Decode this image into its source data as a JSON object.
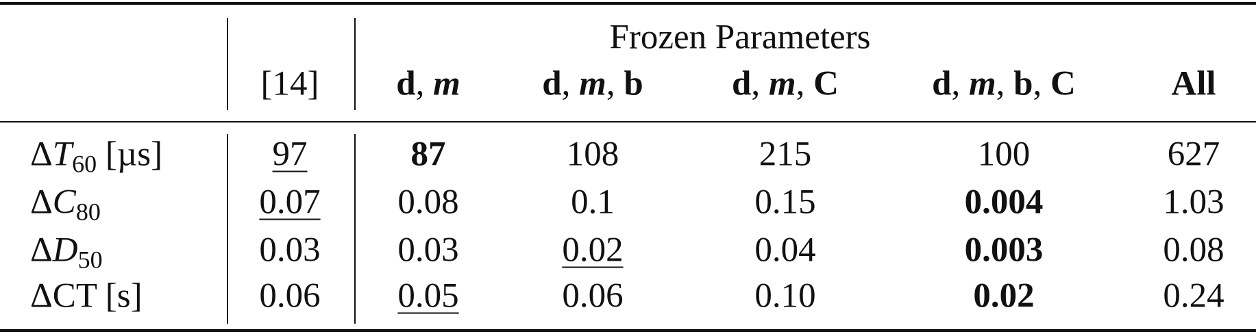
{
  "table": {
    "group_header": "Frozen Parameters",
    "columns": [
      [
        {
          "t": "[14]"
        }
      ],
      [
        {
          "t": "d",
          "bold": true
        },
        {
          "t": ", "
        },
        {
          "t": "m",
          "bold": true,
          "italic": true
        }
      ],
      [
        {
          "t": "d",
          "bold": true
        },
        {
          "t": ", "
        },
        {
          "t": "m",
          "bold": true,
          "italic": true
        },
        {
          "t": ", "
        },
        {
          "t": "b",
          "bold": true
        }
      ],
      [
        {
          "t": "d",
          "bold": true
        },
        {
          "t": ", "
        },
        {
          "t": "m",
          "bold": true,
          "italic": true
        },
        {
          "t": ", "
        },
        {
          "t": "C",
          "bold": true
        }
      ],
      [
        {
          "t": "d",
          "bold": true
        },
        {
          "t": ", "
        },
        {
          "t": "m",
          "bold": true,
          "italic": true
        },
        {
          "t": ", "
        },
        {
          "t": "b",
          "bold": true
        },
        {
          "t": ", "
        },
        {
          "t": "C",
          "bold": true
        }
      ],
      [
        {
          "t": "All",
          "bold": true
        }
      ]
    ],
    "rows": [
      {
        "label": [
          {
            "t": "Δ"
          },
          {
            "t": "T",
            "italic": true
          },
          {
            "t": "60",
            "sub": true
          },
          {
            "t": " [µs]"
          }
        ],
        "cells": [
          {
            "text": "97",
            "underline": true
          },
          {
            "text": "87",
            "bold": true
          },
          {
            "text": "108"
          },
          {
            "text": "215"
          },
          {
            "text": "100"
          },
          {
            "text": "627"
          }
        ]
      },
      {
        "label": [
          {
            "t": "Δ"
          },
          {
            "t": "C",
            "italic": true
          },
          {
            "t": "80",
            "sub": true
          }
        ],
        "cells": [
          {
            "text": "0.07",
            "underline": true
          },
          {
            "text": "0.08"
          },
          {
            "text": "0.1"
          },
          {
            "text": "0.15"
          },
          {
            "text": "0.004",
            "bold": true
          },
          {
            "text": "1.03"
          }
        ]
      },
      {
        "label": [
          {
            "t": "Δ"
          },
          {
            "t": "D",
            "italic": true
          },
          {
            "t": "50",
            "sub": true
          }
        ],
        "cells": [
          {
            "text": "0.03"
          },
          {
            "text": "0.03"
          },
          {
            "text": "0.02",
            "underline": true
          },
          {
            "text": "0.04"
          },
          {
            "text": "0.003",
            "bold": true
          },
          {
            "text": "0.08"
          }
        ]
      },
      {
        "label": [
          {
            "t": "Δ"
          },
          {
            "t": "CT"
          },
          {
            "t": " [s]"
          }
        ],
        "cells": [
          {
            "text": "0.06"
          },
          {
            "text": "0.05",
            "underline": true
          },
          {
            "text": "0.06"
          },
          {
            "text": "0.10"
          },
          {
            "text": "0.02",
            "bold": true
          },
          {
            "text": "0.24"
          }
        ]
      }
    ]
  }
}
